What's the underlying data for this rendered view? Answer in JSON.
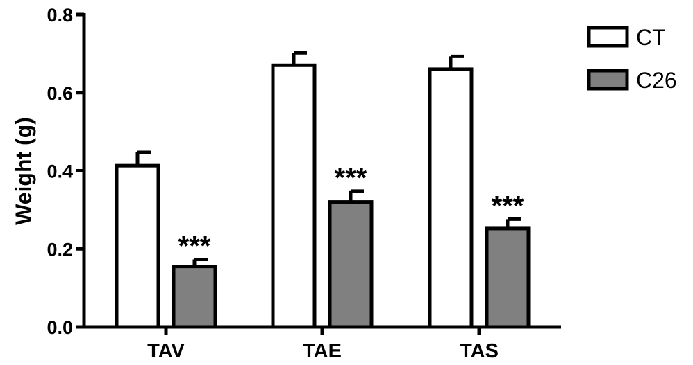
{
  "chart_data": {
    "type": "bar",
    "title": "",
    "xlabel": "",
    "ylabel": "Weight (g)",
    "ylim": [
      0,
      0.8
    ],
    "yticks": [
      "0.0",
      "0.2",
      "0.4",
      "0.6",
      "0.8"
    ],
    "categories": [
      "TAV",
      "TAE",
      "TAS"
    ],
    "series": [
      {
        "name": "CT",
        "values": [
          0.413,
          0.67,
          0.66
        ],
        "errors": [
          0.034,
          0.032,
          0.033
        ],
        "color": "#ffffff"
      },
      {
        "name": "C26",
        "values": [
          0.155,
          0.32,
          0.252
        ],
        "errors": [
          0.018,
          0.028,
          0.024
        ],
        "color": "#808080"
      }
    ],
    "annotations": [
      "***",
      "***",
      "***"
    ],
    "legend_position": "top-right",
    "grid": false
  }
}
